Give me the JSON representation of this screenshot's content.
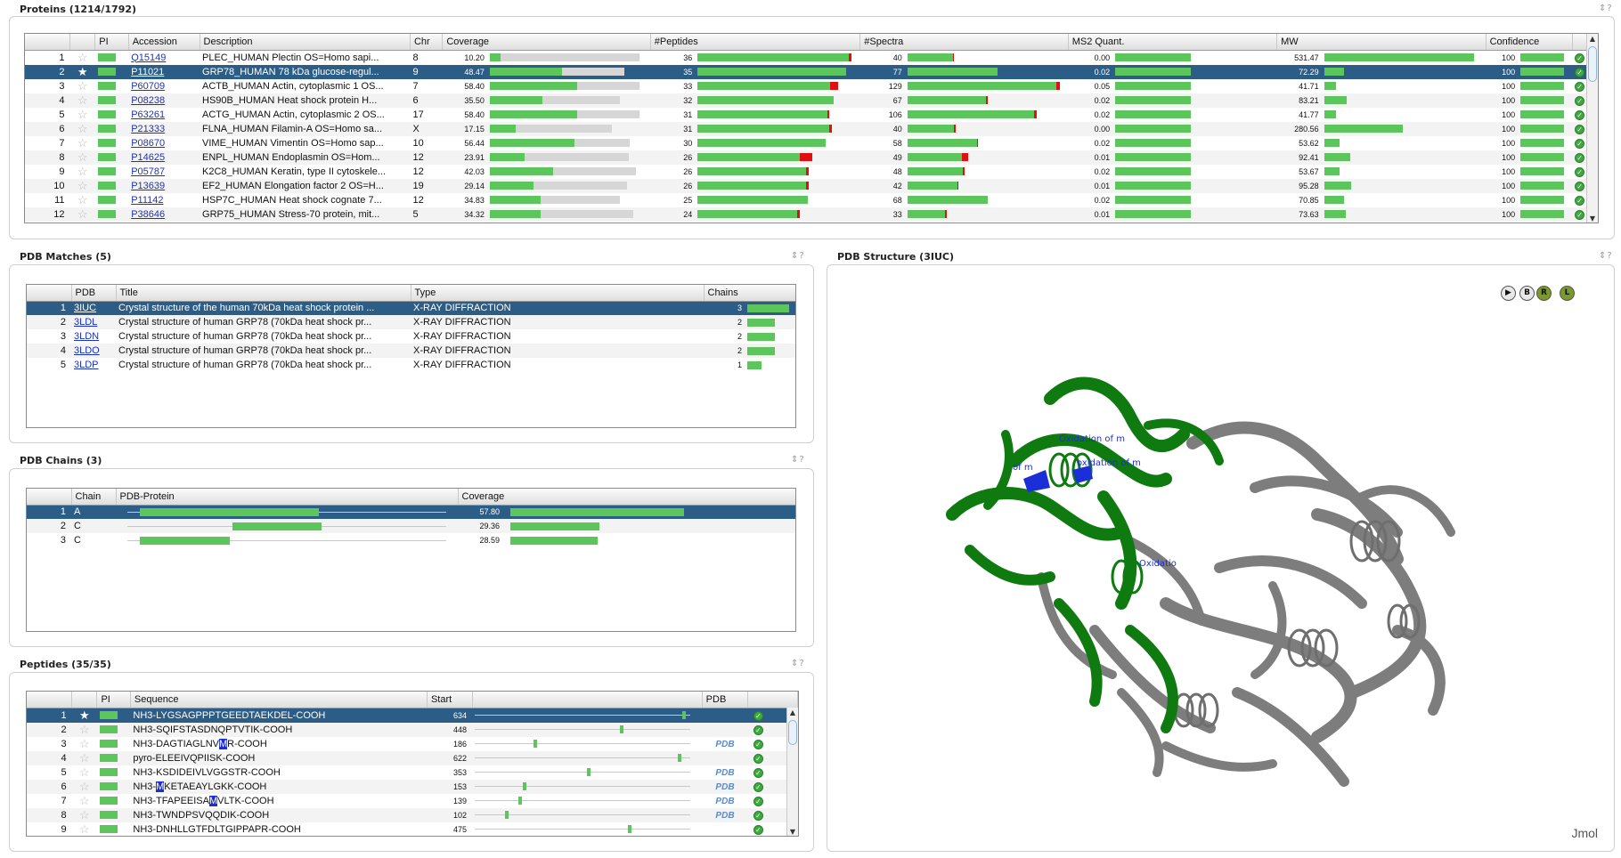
{
  "proteins": {
    "title": "Proteins (1214/1792)",
    "tools": "⇕?",
    "columns": [
      "",
      "",
      "PI",
      "Accession",
      "Description",
      "Chr",
      "Coverage",
      "#Peptides",
      "#Spectra",
      "MS2 Quant.",
      "MW",
      "Confidence",
      ""
    ],
    "rows": [
      {
        "n": "1",
        "acc": "Q15149",
        "desc": "PLEC_HUMAN Plectin OS=Homo sapi...",
        "chr": "8",
        "cov": "10.20",
        "covf": 0.07,
        "covt": 0.99,
        "pep": "36",
        "pepf": 0.99,
        "pepr": 0.02,
        "spec": "40",
        "specf": 0.3,
        "specr": 0.01,
        "ms2": "0.00",
        "ms2f": 0.5,
        "mw": "531.47",
        "mwf": 0.99,
        "conf": "100",
        "star": false,
        "sel": false
      },
      {
        "n": "2",
        "acc": "P11021",
        "desc": "GRP78_HUMAN 78 kDa glucose-regul...",
        "chr": "9",
        "cov": "48.47",
        "covf": 0.48,
        "covt": 0.89,
        "pep": "35",
        "pepf": 0.97,
        "pepr": 0,
        "spec": "77",
        "specf": 0.6,
        "specr": 0,
        "ms2": "0.02",
        "ms2f": 0.5,
        "mw": "72.29",
        "mwf": 0.13,
        "conf": "100",
        "star": true,
        "sel": true
      },
      {
        "n": "3",
        "acc": "P60709",
        "desc": "ACTB_HUMAN Actin, cytoplasmic 1 OS...",
        "chr": "7",
        "cov": "58.40",
        "covf": 0.58,
        "covt": 0.99,
        "pep": "33",
        "pepf": 0.87,
        "pepr": 0.05,
        "spec": "129",
        "specf": 0.99,
        "specr": 0.02,
        "ms2": "0.05",
        "ms2f": 0.5,
        "mw": "41.71",
        "mwf": 0.08,
        "conf": "100",
        "star": false,
        "sel": false
      },
      {
        "n": "4",
        "acc": "P08238",
        "desc": "HS90B_HUMAN Heat shock protein H...",
        "chr": "6",
        "cov": "35.50",
        "covf": 0.35,
        "covt": 0.86,
        "pep": "32",
        "pepf": 0.89,
        "pepr": 0,
        "spec": "67",
        "specf": 0.52,
        "specr": 0.01,
        "ms2": "0.02",
        "ms2f": 0.5,
        "mw": "83.21",
        "mwf": 0.15,
        "conf": "100",
        "star": false,
        "sel": false
      },
      {
        "n": "5",
        "acc": "P63261",
        "desc": "ACTG_HUMAN Actin, cytoplasmic 2 OS...",
        "chr": "17",
        "cov": "58.40",
        "covf": 0.58,
        "covt": 0.99,
        "pep": "31",
        "pepf": 0.85,
        "pepr": 0.01,
        "spec": "106",
        "specf": 0.84,
        "specr": 0.02,
        "ms2": "0.02",
        "ms2f": 0.5,
        "mw": "41.77",
        "mwf": 0.08,
        "conf": "100",
        "star": false,
        "sel": false
      },
      {
        "n": "6",
        "acc": "P21333",
        "desc": "FLNA_HUMAN Filamin-A OS=Homo sa...",
        "chr": "X",
        "cov": "17.15",
        "covf": 0.17,
        "covt": 0.81,
        "pep": "31",
        "pepf": 0.86,
        "pepr": 0.02,
        "spec": "40",
        "specf": 0.31,
        "specr": 0.01,
        "ms2": "0.00",
        "ms2f": 0.5,
        "mw": "280.56",
        "mwf": 0.52,
        "conf": "100",
        "star": false,
        "sel": false
      },
      {
        "n": "7",
        "acc": "P08670",
        "desc": "VIME_HUMAN Vimentin OS=Homo sap...",
        "chr": "10",
        "cov": "56.44",
        "covf": 0.56,
        "covt": 0.93,
        "pep": "30",
        "pepf": 0.84,
        "pepr": 0,
        "spec": "58",
        "specf": 0.46,
        "specr": 0.01,
        "ms2": "0.02",
        "ms2f": 0.5,
        "mw": "53.62",
        "mwf": 0.1,
        "conf": "100",
        "star": false,
        "sel": false
      },
      {
        "n": "8",
        "acc": "P14625",
        "desc": "ENPL_HUMAN Endoplasmin OS=Hom...",
        "chr": "12",
        "cov": "23.91",
        "covf": 0.23,
        "covt": 0.92,
        "pep": "26",
        "pepf": 0.67,
        "pepr": 0.08,
        "spec": "49",
        "specf": 0.36,
        "specr": 0.04,
        "ms2": "0.01",
        "ms2f": 0.5,
        "mw": "92.41",
        "mwf": 0.17,
        "conf": "100",
        "star": false,
        "sel": false
      },
      {
        "n": "9",
        "acc": "P05787",
        "desc": "K2C8_HUMAN Keratin, type II cytoskele...",
        "chr": "12",
        "cov": "42.03",
        "covf": 0.42,
        "covt": 0.97,
        "pep": "26",
        "pepf": 0.71,
        "pepr": 0.02,
        "spec": "48",
        "specf": 0.37,
        "specr": 0.01,
        "ms2": "0.02",
        "ms2f": 0.5,
        "mw": "53.67",
        "mwf": 0.1,
        "conf": "100",
        "star": false,
        "sel": false
      },
      {
        "n": "10",
        "acc": "P13639",
        "desc": "EF2_HUMAN Elongation factor 2 OS=H...",
        "chr": "19",
        "cov": "29.14",
        "covf": 0.29,
        "covt": 0.91,
        "pep": "26",
        "pepf": 0.71,
        "pepr": 0.02,
        "spec": "42",
        "specf": 0.33,
        "specr": 0.01,
        "ms2": "0.01",
        "ms2f": 0.5,
        "mw": "95.28",
        "mwf": 0.18,
        "conf": "100",
        "star": false,
        "sel": false
      },
      {
        "n": "11",
        "acc": "P11142",
        "desc": "HSP7C_HUMAN Heat shock cognate 7...",
        "chr": "12",
        "cov": "34.83",
        "covf": 0.34,
        "covt": 0.86,
        "pep": "25",
        "pepf": 0.72,
        "pepr": 0,
        "spec": "68",
        "specf": 0.53,
        "specr": 0,
        "ms2": "0.02",
        "ms2f": 0.5,
        "mw": "70.85",
        "mwf": 0.13,
        "conf": "100",
        "star": false,
        "sel": false
      },
      {
        "n": "12",
        "acc": "P38646",
        "desc": "GRP75_HUMAN Stress-70 protein, mit...",
        "chr": "5",
        "cov": "34.32",
        "covf": 0.34,
        "covt": 0.95,
        "pep": "24",
        "pepf": 0.65,
        "pepr": 0.02,
        "spec": "33",
        "specf": 0.25,
        "specr": 0.01,
        "ms2": "0.01",
        "ms2f": 0.5,
        "mw": "73.63",
        "mwf": 0.14,
        "conf": "100",
        "star": false,
        "sel": false
      }
    ]
  },
  "pdb_matches": {
    "title": "PDB Matches (5)",
    "tools": "⇕?",
    "columns": [
      "",
      "PDB",
      "Title",
      "Type",
      "Chains"
    ],
    "rows": [
      {
        "n": "1",
        "pdb": "3IUC",
        "title": "Crystal structure of the human 70kDa heat shock protein ...",
        "type": "X-RAY DIFFRACTION",
        "chains": "3",
        "cf": 0.95,
        "sel": true
      },
      {
        "n": "2",
        "pdb": "3LDL",
        "title": "Crystal structure of human GRP78 (70kDa heat shock pr...",
        "type": "X-RAY DIFFRACTION",
        "chains": "2",
        "cf": 0.63,
        "sel": false
      },
      {
        "n": "3",
        "pdb": "3LDN",
        "title": "Crystal structure of human GRP78 (70kDa heat shock pr...",
        "type": "X-RAY DIFFRACTION",
        "chains": "2",
        "cf": 0.63,
        "sel": false
      },
      {
        "n": "4",
        "pdb": "3LDO",
        "title": "Crystal structure of human GRP78 (70kDa heat shock pr...",
        "type": "X-RAY DIFFRACTION",
        "chains": "2",
        "cf": 0.63,
        "sel": false
      },
      {
        "n": "5",
        "pdb": "3LDP",
        "title": "Crystal structure of human GRP78 (70kDa heat shock pr...",
        "type": "X-RAY DIFFRACTION",
        "chains": "1",
        "cf": 0.32,
        "sel": false
      }
    ]
  },
  "pdb_chains": {
    "title": "PDB Chains (3)",
    "tools": "⇕?",
    "columns": [
      "",
      "Chain",
      "PDB-Protein",
      "Coverage"
    ],
    "rows": [
      {
        "n": "1",
        "chain": "A",
        "start": 0.04,
        "end": 0.6,
        "cov": "57.80",
        "covf": 0.98,
        "sel": true
      },
      {
        "n": "2",
        "chain": "C",
        "start": 0.33,
        "end": 0.61,
        "cov": "29.36",
        "covf": 0.5,
        "sel": false
      },
      {
        "n": "3",
        "chain": "C",
        "start": 0.04,
        "end": 0.32,
        "cov": "28.59",
        "covf": 0.49,
        "sel": false
      }
    ]
  },
  "peptides": {
    "title": "Peptides (35/35)",
    "tools": "⇕?",
    "columns": [
      "",
      "",
      "PI",
      "Sequence",
      "Start",
      "",
      "PDB",
      ""
    ],
    "rows": [
      {
        "n": "1",
        "pre": "NH3-LYGSAGPPPTGEEDTAEKDEL-COOH",
        "hl": "",
        "post": "",
        "start": "634",
        "pos": 0.97,
        "pdb": "",
        "star": true,
        "sel": true
      },
      {
        "n": "2",
        "pre": "NH3-SQIFSTASDNQPTVTIK-COOH",
        "hl": "",
        "post": "",
        "start": "448",
        "pos": 0.68,
        "pdb": "",
        "star": false,
        "sel": false
      },
      {
        "n": "3",
        "pre": "NH3-DAGTIAGLNV",
        "hl": "M",
        "post": "R-COOH",
        "start": "186",
        "pos": 0.28,
        "pdb": "PDB",
        "star": false,
        "sel": false
      },
      {
        "n": "4",
        "pre": "pyro-ELEEIVQPIISK-COOH",
        "hl": "",
        "post": "",
        "start": "622",
        "pos": 0.95,
        "pdb": "",
        "star": false,
        "sel": false
      },
      {
        "n": "5",
        "pre": "NH3-KSDIDEIVLVGGSTR-COOH",
        "hl": "",
        "post": "",
        "start": "353",
        "pos": 0.53,
        "pdb": "PDB",
        "star": false,
        "sel": false
      },
      {
        "n": "6",
        "pre": "NH3-",
        "hl": "M",
        "post": "KETAEAYLGKK-COOH",
        "start": "153",
        "pos": 0.23,
        "pdb": "PDB",
        "star": false,
        "sel": false
      },
      {
        "n": "7",
        "pre": "NH3-TFAPEEISA",
        "hl": "M",
        "post": "VLTK-COOH",
        "start": "139",
        "pos": 0.21,
        "pdb": "PDB",
        "star": false,
        "sel": false
      },
      {
        "n": "8",
        "pre": "NH3-TWNDPSVQQDIK-COOH",
        "hl": "",
        "post": "",
        "start": "102",
        "pos": 0.15,
        "pdb": "PDB",
        "star": false,
        "sel": false
      },
      {
        "n": "9",
        "pre": "NH3-DNHLLGTFDLTGIPPAPR-COOH",
        "hl": "",
        "post": "",
        "start": "475",
        "pos": 0.72,
        "pdb": "",
        "star": false,
        "sel": false
      }
    ]
  },
  "structure": {
    "title": "PDB Structure (3IUC)",
    "tools": "⇕?",
    "controls": [
      "▶",
      "B",
      "R",
      "L"
    ],
    "viewer_label": "Jmol",
    "annotations": [
      "Oxidation of m",
      "oxidation of m",
      "of m",
      "Oxidatio"
    ]
  },
  "colors": {
    "selected_row": "#2c5d86",
    "bar_green": "#5cc55c",
    "bar_red": "#e01010",
    "chain_green": "#0f7a10",
    "chain_gray": "#7d7d7d"
  }
}
